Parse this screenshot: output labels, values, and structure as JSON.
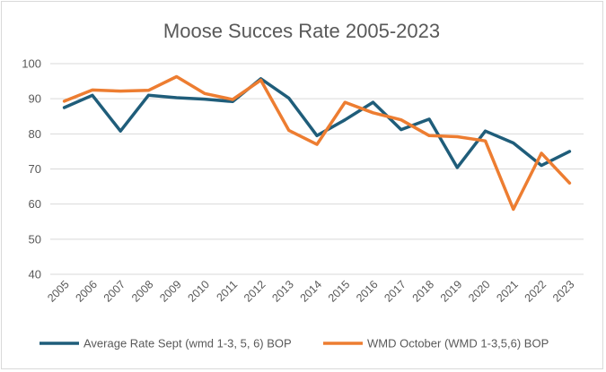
{
  "chart_data": {
    "type": "line",
    "title": "Moose Succes Rate 2005-2023",
    "xlabel": "",
    "ylabel": "",
    "ylim": [
      40,
      100
    ],
    "yticks": [
      40,
      50,
      60,
      70,
      80,
      90,
      100
    ],
    "categories": [
      "2005",
      "2006",
      "2007",
      "2008",
      "2009",
      "2010",
      "2011",
      "2012",
      "2013",
      "2014",
      "2015",
      "2016",
      "2017",
      "2018",
      "2019",
      "2020",
      "2021",
      "2022",
      "2023"
    ],
    "grid": true,
    "legend_position": "bottom",
    "series": [
      {
        "name": "Average Rate Sept (wmd 1-3, 5, 6) BOP",
        "color": "#1f5d7a",
        "values": [
          87.5,
          91,
          80.8,
          91,
          90.3,
          89.9,
          89.2,
          95.7,
          90.2,
          79.5,
          84,
          89,
          81.2,
          84.2,
          70.4,
          80.8,
          77.4,
          71,
          75
        ]
      },
      {
        "name": "WMD October (WMD 1-3,5,6) BOP",
        "color": "#ed7d31",
        "values": [
          89.3,
          92.5,
          92.2,
          92.4,
          96.3,
          91.5,
          89.8,
          95.3,
          81,
          77,
          89,
          86,
          84,
          79.5,
          79.2,
          78,
          58.5,
          74.5,
          66
        ]
      }
    ]
  }
}
